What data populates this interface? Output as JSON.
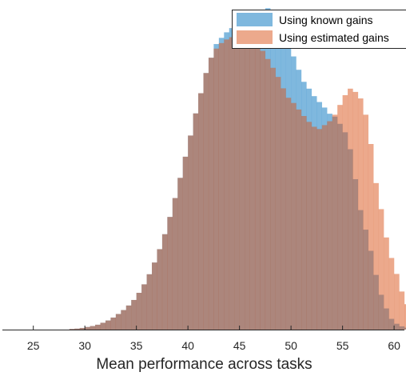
{
  "chart_data": {
    "type": "bar",
    "subtype": "overlapping-histogram",
    "xlabel": "Mean performance across tasks",
    "ylabel": "",
    "xlim": [
      22,
      61
    ],
    "ylim": [
      0,
      100
    ],
    "x_ticks": [
      25,
      30,
      35,
      40,
      45,
      50,
      55,
      60
    ],
    "y_axis_visible": false,
    "grid": false,
    "legend_position": "top-right",
    "bin_width": 0.5,
    "bin_start": 28.5,
    "series": [
      {
        "name": "Using known gains",
        "color": "#0072BD",
        "opacity": 0.5,
        "values": [
          0.2,
          0.3,
          0.5,
          0.8,
          1.1,
          1.5,
          2.1,
          2.8,
          3.7,
          4.8,
          6,
          7.4,
          9.1,
          11.3,
          13.9,
          17,
          20.6,
          24.7,
          29.3,
          34.6,
          40.4,
          46.6,
          53.1,
          59.6,
          66.4,
          72.6,
          78.8,
          83.5,
          87.7,
          89.6,
          91.3,
          92.6,
          93.2,
          94.1,
          94.6,
          95.7,
          96.6,
          97.3,
          98.7,
          97.2,
          95.3,
          92.8,
          88.6,
          83.9,
          79.8,
          76.1,
          74,
          71.7,
          69.9,
          68.2,
          66.3,
          65.4,
          63.2,
          60.6,
          55.4,
          46.2,
          36.7,
          30.7,
          24.2,
          16.8,
          10.7,
          6.5,
          3.3,
          1.8,
          1,
          0.6,
          0.3,
          0.2
        ]
      },
      {
        "name": "Using estimated gains",
        "color": "#D95319",
        "opacity": 0.5,
        "values": [
          0.2,
          0.3,
          0.5,
          0.8,
          1.1,
          1.5,
          2.1,
          2.8,
          3.7,
          4.8,
          6,
          7.4,
          9.1,
          11.3,
          13.9,
          17,
          20.6,
          24.7,
          29.3,
          34.6,
          40.4,
          46.6,
          53.1,
          59.6,
          66.4,
          72.6,
          78.8,
          83.5,
          86.3,
          88,
          89.1,
          89.8,
          90.1,
          90.3,
          89.6,
          88.5,
          87.4,
          85.6,
          83.1,
          80.4,
          77.6,
          74.1,
          71.2,
          69.6,
          67.6,
          65.6,
          63.8,
          62.3,
          61.6,
          62.8,
          64,
          66,
          69,
          72,
          74,
          73,
          71,
          66,
          57,
          45,
          37,
          28.3,
          22,
          17.1,
          11.7,
          7.8,
          5,
          2.4,
          1.8,
          1.2,
          0.6,
          0.4,
          0.2
        ]
      }
    ]
  }
}
